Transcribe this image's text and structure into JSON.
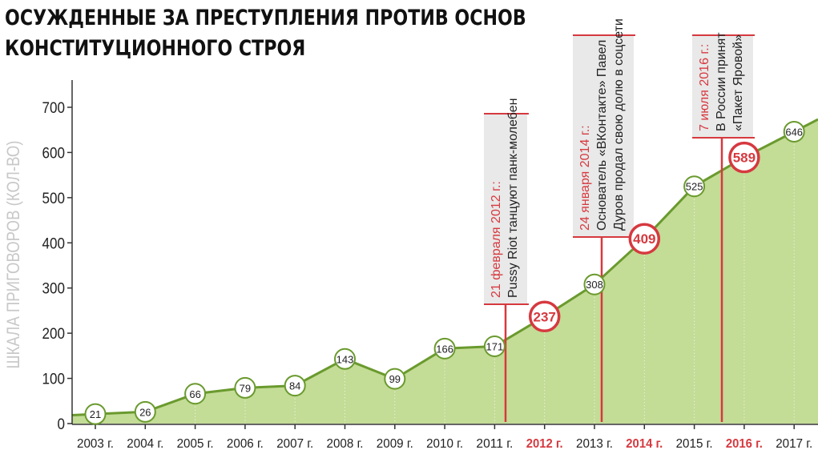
{
  "title": {
    "line1": "ОСУЖДЕННЫЕ ЗА ПРЕСТУПЛЕНИЯ ПРОТИВ ОСНОВ",
    "line2": "КОНСТИТУЦИОННОГО СТРОЯ"
  },
  "colors": {
    "line": "#6a9a2e",
    "area": "#c3dc96",
    "highlight": "#d6393f",
    "axis": "#333333",
    "ylabel": "#c8c8c8",
    "annotation_bg": "#e9e9e9"
  },
  "chart_data": {
    "type": "area",
    "title": "ОСУЖДЕННЫЕ ЗА ПРЕСТУПЛЕНИЯ ПРОТИВ ОСНОВ КОНСТИТУЦИОННОГО СТРОЯ",
    "xlabel": "",
    "ylabel": "ШКАЛА ПРИГОВОРОВ (КОЛ-ВО)",
    "ylim": [
      0,
      700
    ],
    "yticks": [
      0,
      100,
      200,
      300,
      400,
      500,
      600,
      700
    ],
    "categories": [
      "2003 г.",
      "2004 г.",
      "2005 г.",
      "2006 г.",
      "2007 г.",
      "2008 г.",
      "2009 г.",
      "2010 г.",
      "2011 г.",
      "2012 г.",
      "2013 г.",
      "2014 г.",
      "2015 г.",
      "2016 г.",
      "2017 г."
    ],
    "values": [
      21,
      26,
      66,
      79,
      84,
      143,
      99,
      166,
      171,
      237,
      308,
      409,
      525,
      589,
      646
    ],
    "highlighted": [
      "2012 г.",
      "2014 г.",
      "2016 г."
    ],
    "grid": false,
    "annotations": [
      {
        "date": "21 февраля 2012 г.:",
        "text": [
          "Pussy Riot танцуют панк-молебен"
        ]
      },
      {
        "date": "24 января 2014 г.:",
        "text": [
          "Основатель «ВКонтакте» Павел",
          "Дуров продал свою долю в соцсети"
        ]
      },
      {
        "date": "7 июля 2016 г.:",
        "text": [
          "В России принят",
          "«Пакет Яровой»"
        ]
      }
    ]
  }
}
